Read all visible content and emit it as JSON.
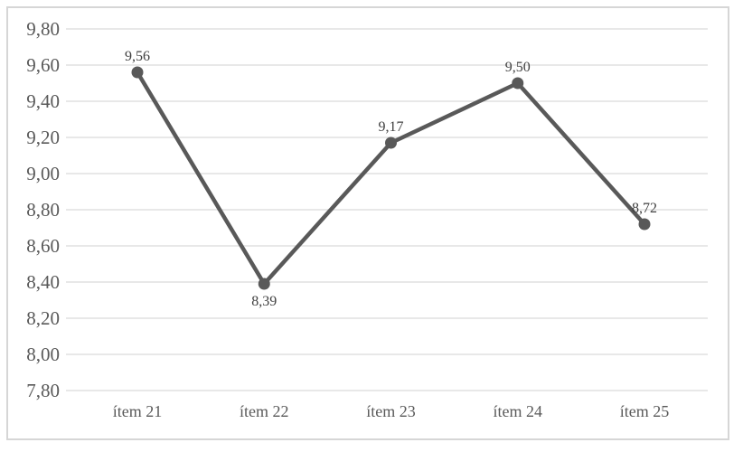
{
  "chart_data": {
    "type": "line",
    "categories": [
      "ítem 21",
      "ítem 22",
      "ítem 23",
      "ítem 24",
      "ítem 25"
    ],
    "values": [
      9.56,
      8.39,
      9.17,
      9.5,
      8.72
    ],
    "point_labels": [
      "9,56",
      "8,39",
      "9,17",
      "9,50",
      "8,72"
    ],
    "point_label_positions": [
      "above",
      "below",
      "above",
      "above",
      "above"
    ],
    "y_tick_labels": [
      "9,80",
      "9,60",
      "9,40",
      "9,20",
      "9,00",
      "8,80",
      "8,60",
      "8,40",
      "8,20",
      "8,00",
      "7,80"
    ],
    "ylim": [
      7.8,
      9.8
    ],
    "y_step": 0.2,
    "title": "",
    "xlabel": "",
    "ylabel": "",
    "grid": true,
    "legend_position": "none",
    "colors": {
      "line": "#595959",
      "marker": "#595959",
      "gridline": "#d9d9d9",
      "frame_border": "#d6d6d6",
      "axis_label": "#595959",
      "data_label": "#404040",
      "background": "#ffffff"
    }
  }
}
